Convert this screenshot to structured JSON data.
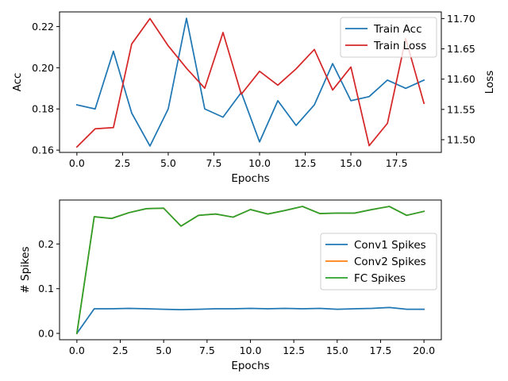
{
  "chart_data": [
    {
      "type": "line",
      "xlabel": "Epochs",
      "ylabel": "Acc",
      "ylabel_right": "Loss",
      "xlim": [
        -0.95,
        19.95
      ],
      "xticks": [
        0.0,
        2.5,
        5.0,
        7.5,
        10.0,
        12.5,
        15.0,
        17.5
      ],
      "xtick_labels": [
        "0.0",
        "2.5",
        "5.0",
        "7.5",
        "10.0",
        "12.5",
        "15.0",
        "17.5"
      ],
      "ylim": [
        0.1589,
        0.2271
      ],
      "yticks": [
        0.16,
        0.18,
        0.2,
        0.22
      ],
      "ytick_labels": [
        "0.16",
        "0.18",
        "0.20",
        "0.22"
      ],
      "ylim_right": [
        11.479,
        11.711
      ],
      "yticks_right": [
        11.5,
        11.55,
        11.6,
        11.65,
        11.7
      ],
      "ytick_labels_right": [
        "11.50",
        "11.55",
        "11.60",
        "11.65",
        "11.70"
      ],
      "legend_position": "top-right",
      "x": [
        0,
        1,
        2,
        3,
        4,
        5,
        6,
        7,
        8,
        9,
        10,
        11,
        12,
        13,
        14,
        15,
        16,
        17,
        18,
        19
      ],
      "series": [
        {
          "name": "Train Acc",
          "axis": "left",
          "color": "#1f77b4",
          "values": [
            0.182,
            0.18,
            0.208,
            0.178,
            0.162,
            0.18,
            0.224,
            0.18,
            0.176,
            0.188,
            0.164,
            0.184,
            0.172,
            0.182,
            0.202,
            0.184,
            0.186,
            0.194,
            0.19,
            0.194
          ]
        },
        {
          "name": "Train Loss",
          "axis": "right",
          "color": "#d62728",
          "values": [
            11.488,
            11.518,
            11.52,
            11.658,
            11.7,
            11.655,
            11.618,
            11.585,
            11.677,
            11.575,
            11.613,
            11.59,
            11.617,
            11.649,
            11.582,
            11.62,
            11.49,
            11.527,
            11.667,
            11.56
          ]
        }
      ]
    },
    {
      "type": "line",
      "xlabel": "Epochs",
      "ylabel": "# Spikes",
      "xlim": [
        -1.0,
        21.0
      ],
      "xticks": [
        0.0,
        2.5,
        5.0,
        7.5,
        10.0,
        12.5,
        15.0,
        17.5,
        20.0
      ],
      "xtick_labels": [
        "0.0",
        "2.5",
        "5.0",
        "7.5",
        "10.0",
        "12.5",
        "15.0",
        "17.5",
        "20.0"
      ],
      "ylim": [
        -0.0142,
        0.2983
      ],
      "yticks": [
        0.0,
        0.1,
        0.2
      ],
      "ytick_labels": [
        "0.0",
        "0.1",
        "0.2"
      ],
      "legend_position": "center-right",
      "x": [
        0,
        1,
        2,
        3,
        4,
        5,
        6,
        7,
        8,
        9,
        10,
        11,
        12,
        13,
        14,
        15,
        16,
        17,
        18,
        19,
        20
      ],
      "series": [
        {
          "name": "Conv1 Spikes",
          "color": "#1f77b4",
          "values": [
            0.0,
            0.055,
            0.055,
            0.056,
            0.055,
            0.054,
            0.053,
            0.054,
            0.055,
            0.055,
            0.056,
            0.055,
            0.056,
            0.055,
            0.056,
            0.054,
            0.055,
            0.056,
            0.058,
            0.054,
            0.054
          ]
        },
        {
          "name": "Conv2 Spikes",
          "color": "#ff7f0e",
          "values": [
            0.0,
            0.261,
            0.257,
            0.27,
            0.279,
            0.28,
            0.24,
            0.264,
            0.267,
            0.26,
            0.277,
            0.267,
            0.275,
            0.284,
            0.268,
            0.269,
            0.269,
            0.277,
            0.284,
            0.264,
            0.273
          ]
        },
        {
          "name": "FC Spikes",
          "color": "#2ca02c",
          "values": [
            0.0,
            0.261,
            0.257,
            0.27,
            0.279,
            0.28,
            0.24,
            0.264,
            0.267,
            0.26,
            0.277,
            0.267,
            0.275,
            0.284,
            0.268,
            0.269,
            0.269,
            0.277,
            0.284,
            0.264,
            0.273
          ]
        }
      ]
    }
  ]
}
